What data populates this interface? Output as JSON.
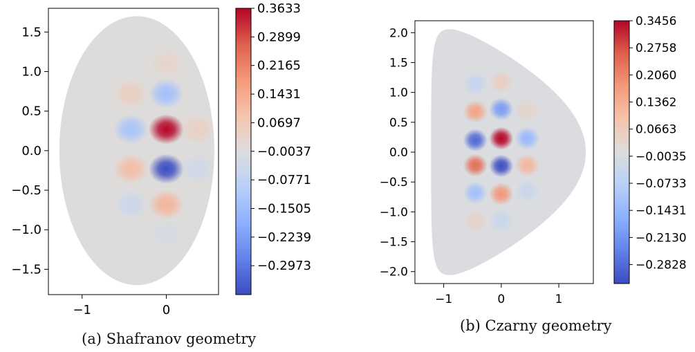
{
  "chart_data": [
    {
      "type": "heatmap",
      "caption": "(a) Shafranov geometry",
      "xlim": [
        -1.4,
        0.62
      ],
      "ylim": [
        -1.82,
        1.8
      ],
      "xticks": [
        -1,
        0
      ],
      "yticks": [
        1.5,
        1.0,
        0.5,
        0.0,
        -0.5,
        -1.0,
        -1.5
      ],
      "xtick_labels": [
        "−1",
        "0"
      ],
      "ytick_labels": [
        "1.5",
        "1.0",
        "0.5",
        "0.0",
        "−0.5",
        "−1.0",
        "−1.5"
      ],
      "colorbar_ticks": [
        0.3633,
        0.2899,
        0.2165,
        0.1431,
        0.0697,
        -0.0037,
        -0.0771,
        -0.1505,
        -0.2239,
        -0.2973
      ],
      "colorbar_tick_labels": [
        "0.3633",
        "0.2899",
        "0.2165",
        "0.1431",
        "0.0697",
        "−0.0037",
        "−0.0771",
        "−0.1505",
        "−0.2239",
        "−0.2973"
      ],
      "colorbar_range": [
        -0.3715,
        0.3633
      ],
      "colormap": "coolwarm",
      "domain": {
        "shape": "shafranov",
        "x_min": -1.27,
        "x_max": 0.57,
        "y_min": -1.7,
        "y_max": 1.7,
        "x_at_y_extreme": -0.35
      },
      "blobs": [
        {
          "x": 0.0,
          "y": 0.27,
          "value": 0.3633
        },
        {
          "x": 0.0,
          "y": -0.23,
          "value": -0.3715
        },
        {
          "x": 0.0,
          "y": 0.72,
          "value": -0.14
        },
        {
          "x": 0.0,
          "y": -0.68,
          "value": 0.12
        },
        {
          "x": -0.42,
          "y": 0.27,
          "value": -0.13
        },
        {
          "x": -0.42,
          "y": -0.23,
          "value": 0.1
        },
        {
          "x": -0.42,
          "y": 0.72,
          "value": 0.05
        },
        {
          "x": -0.42,
          "y": -0.68,
          "value": -0.05
        },
        {
          "x": 0.37,
          "y": 0.27,
          "value": 0.045
        },
        {
          "x": 0.37,
          "y": -0.23,
          "value": -0.04
        },
        {
          "x": 0.0,
          "y": 1.1,
          "value": 0.03
        },
        {
          "x": 0.0,
          "y": -1.05,
          "value": -0.025
        }
      ]
    },
    {
      "type": "heatmap",
      "caption": "(b) Czarny geometry",
      "xlim": [
        -1.5,
        1.6
      ],
      "ylim": [
        -2.2,
        2.2
      ],
      "xticks": [
        -1,
        0,
        1
      ],
      "yticks": [
        2.0,
        1.5,
        1.0,
        0.5,
        0.0,
        -0.5,
        -1.0,
        -1.5,
        -2.0
      ],
      "xtick_labels": [
        "−1",
        "0",
        "1"
      ],
      "ytick_labels": [
        "2.0",
        "1.5",
        "1.0",
        "0.5",
        "0.0",
        "−0.5",
        "−1.0",
        "−1.5",
        "−2.0"
      ],
      "colorbar_ticks": [
        0.3456,
        0.2758,
        0.206,
        0.1362,
        0.0663,
        -0.0035,
        -0.0733,
        -0.1431,
        -0.213,
        -0.2828
      ],
      "colorbar_tick_labels": [
        "0.3456",
        "0.2758",
        "0.2060",
        "0.1362",
        "0.0663",
        "−0.0035",
        "−0.0733",
        "−0.1431",
        "−0.2130",
        "−0.2828"
      ],
      "colorbar_range": [
        -0.3317,
        0.3456
      ],
      "colormap": "coolwarm",
      "domain": {
        "shape": "czarny",
        "left": -1.22,
        "right": 1.47,
        "x_at_y_extreme": -0.9,
        "y_top": 2.06,
        "y_bottom": -2.06
      },
      "blobs": [
        {
          "x": 0.0,
          "y": 0.23,
          "value": 0.3456
        },
        {
          "x": 0.0,
          "y": -0.23,
          "value": -0.3317
        },
        {
          "x": -0.45,
          "y": 0.2,
          "value": -0.29
        },
        {
          "x": -0.45,
          "y": -0.22,
          "value": 0.24
        },
        {
          "x": 0.0,
          "y": 0.72,
          "value": -0.2
        },
        {
          "x": 0.0,
          "y": -0.7,
          "value": 0.18
        },
        {
          "x": -0.45,
          "y": 0.68,
          "value": 0.16
        },
        {
          "x": -0.45,
          "y": -0.68,
          "value": -0.12
        },
        {
          "x": 0.45,
          "y": 0.23,
          "value": -0.14
        },
        {
          "x": 0.45,
          "y": -0.22,
          "value": 0.12
        },
        {
          "x": -0.45,
          "y": 1.15,
          "value": -0.05
        },
        {
          "x": 0.0,
          "y": 1.18,
          "value": 0.06
        },
        {
          "x": -0.45,
          "y": -1.15,
          "value": 0.05
        },
        {
          "x": 0.0,
          "y": -1.15,
          "value": -0.04
        },
        {
          "x": 0.45,
          "y": 0.7,
          "value": 0.04
        },
        {
          "x": 0.45,
          "y": -0.65,
          "value": -0.04
        }
      ]
    }
  ]
}
